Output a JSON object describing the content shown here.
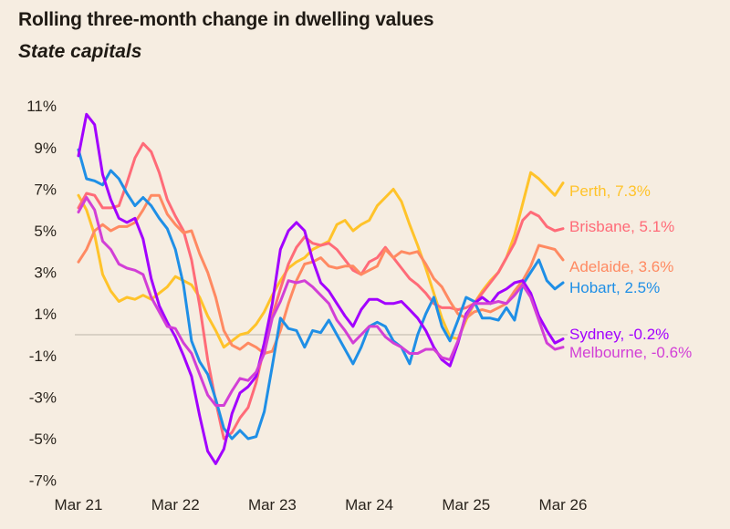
{
  "chart_data": {
    "type": "line",
    "title": "Rolling three-month change in dwelling values",
    "subtitle": "State capitals",
    "xlabel": "",
    "ylabel": "",
    "x_start": "Mar 21",
    "x_end": "Mar 26",
    "x_frequency": "monthly",
    "x_ticks": [
      "Mar 21",
      "Mar 22",
      "Mar 23",
      "Mar 24",
      "Mar 25",
      "Mar 26"
    ],
    "y_ticks": [
      "11%",
      "9%",
      "7%",
      "5%",
      "3%",
      "1%",
      "-1%",
      "-3%",
      "-5%",
      "-7%"
    ],
    "y_tick_values": [
      11,
      9,
      7,
      5,
      3,
      1,
      -1,
      -3,
      -5,
      -7
    ],
    "ylim": [
      -7.5,
      11.5
    ],
    "zero_line": true,
    "grid": false,
    "legend": "end-of-line labels, right",
    "background": "#f6ede1",
    "series": [
      {
        "name": "Perth",
        "label": "Perth, 7.3%",
        "color": "#ffc32a",
        "values": [
          6.7,
          6.0,
          4.8,
          2.9,
          2.1,
          1.6,
          1.8,
          1.7,
          1.9,
          1.7,
          2.0,
          2.3,
          2.8,
          2.6,
          2.4,
          1.8,
          0.9,
          0.2,
          -0.6,
          -0.3,
          0,
          0.1,
          0.5,
          1.1,
          1.9,
          2.6,
          3.2,
          3.5,
          3.7,
          4.1,
          4.3,
          4.5,
          5.3,
          5.5,
          5.0,
          5.3,
          5.5,
          6.2,
          6.6,
          7.0,
          6.4,
          5.3,
          4.3,
          3.2,
          2.0,
          0.8,
          -0.1,
          -0.2,
          0.7,
          1.5,
          2.1,
          2.6,
          3.0,
          3.7,
          4.8,
          6.3,
          7.8,
          7.5,
          7.1,
          6.7,
          7.3
        ]
      },
      {
        "name": "Brisbane",
        "label": "Brisbane, 5.1%",
        "color": "#ff6b78",
        "values": [
          6.1,
          6.8,
          6.7,
          6.1,
          6.1,
          6.2,
          7.3,
          8.5,
          9.2,
          8.8,
          7.8,
          6.5,
          5.7,
          5.0,
          3.6,
          1.4,
          -1.2,
          -3.2,
          -5.0,
          -4.7,
          -4.0,
          -3.5,
          -2.3,
          -0.6,
          0.9,
          2.2,
          3.4,
          4.2,
          4.7,
          4.4,
          4.3,
          4.4,
          4.1,
          3.6,
          3.1,
          2.9,
          3.5,
          3.7,
          4.2,
          3.7,
          3.2,
          2.7,
          2.4,
          2.0,
          1.5,
          1.3,
          1.3,
          1.2,
          1.3,
          1.5,
          2.0,
          2.5,
          3.0,
          3.7,
          4.4,
          5.5,
          5.9,
          5.7,
          5.2,
          5.0,
          5.1
        ]
      },
      {
        "name": "Adelaide",
        "label": "Adelaide, 3.6%",
        "color": "#ff8a62",
        "values": [
          3.5,
          4.1,
          5.0,
          5.3,
          5.0,
          5.2,
          5.2,
          5.4,
          6.0,
          6.7,
          6.7,
          5.8,
          5.3,
          4.9,
          5.0,
          3.9,
          3.0,
          1.8,
          0.2,
          -0.5,
          -0.7,
          -0.4,
          -0.6,
          -0.9,
          -0.8,
          0.2,
          1.5,
          2.6,
          3.4,
          3.5,
          3.7,
          3.3,
          3.2,
          3.3,
          3.3,
          2.9,
          3.1,
          3.3,
          4.1,
          3.7,
          4.0,
          3.9,
          4.0,
          3.4,
          2.7,
          2.3,
          1.6,
          1.0,
          0.8,
          1.1,
          1.2,
          1.1,
          1.3,
          1.5,
          2.1,
          2.6,
          3.3,
          4.3,
          4.2,
          4.1,
          3.6
        ]
      },
      {
        "name": "Hobart",
        "label": "Hobart, 2.5%",
        "color": "#1f8fe6",
        "values": [
          8.9,
          7.5,
          7.4,
          7.2,
          7.9,
          7.5,
          6.8,
          6.2,
          6.6,
          6.2,
          5.6,
          5.1,
          4.1,
          2.4,
          -0.3,
          -1.3,
          -1.9,
          -3.1,
          -4.5,
          -5.0,
          -4.6,
          -5.0,
          -4.9,
          -3.7,
          -1.5,
          0.8,
          0.3,
          0.2,
          -0.6,
          0.2,
          0.1,
          0.7,
          0,
          -0.7,
          -1.4,
          -0.6,
          0.4,
          0.6,
          0.4,
          -0.3,
          -0.6,
          -1.4,
          0,
          1.0,
          1.8,
          0.4,
          -0.3,
          0.7,
          1.8,
          1.6,
          0.8,
          0.8,
          0.7,
          1.3,
          0.7,
          2.4,
          3.0,
          3.6,
          2.6,
          2.2,
          2.5
        ]
      },
      {
        "name": "Sydney",
        "label": "Sydney, -0.2%",
        "color": "#a200ff",
        "values": [
          8.6,
          10.6,
          10.1,
          7.7,
          6.5,
          5.6,
          5.4,
          5.6,
          4.6,
          2.7,
          1.4,
          0.6,
          -0.1,
          -1.0,
          -2.0,
          -3.9,
          -5.6,
          -6.2,
          -5.5,
          -3.8,
          -2.8,
          -2.5,
          -2.0,
          -0.4,
          1.5,
          4.1,
          5.0,
          5.4,
          5.0,
          3.6,
          2.5,
          2.1,
          1.5,
          0.9,
          0.4,
          1.2,
          1.7,
          1.7,
          1.5,
          1.5,
          1.6,
          1.2,
          0.8,
          0.2,
          -0.6,
          -1.2,
          -1.5,
          -0.4,
          1.0,
          1.5,
          1.8,
          1.5,
          2.0,
          2.2,
          2.5,
          2.6,
          2.0,
          0.9,
          0.2,
          -0.4,
          -0.2
        ]
      },
      {
        "name": "Melbourne",
        "label": "Melbourne, -0.6%",
        "color": "#d23fd6",
        "values": [
          5.9,
          6.6,
          6.0,
          4.5,
          4.1,
          3.4,
          3.2,
          3.1,
          2.9,
          1.8,
          1.1,
          0.4,
          0.3,
          -0.4,
          -0.9,
          -1.9,
          -2.9,
          -3.4,
          -3.4,
          -2.7,
          -2.1,
          -2.2,
          -1.8,
          -0.9,
          0.8,
          1.6,
          2.6,
          2.5,
          2.6,
          2.3,
          1.9,
          1.5,
          0.7,
          0.2,
          -0.4,
          0,
          0.4,
          0.4,
          -0.1,
          -0.4,
          -0.6,
          -0.9,
          -0.9,
          -0.7,
          -0.7,
          -1.1,
          -1.2,
          -0.3,
          0.9,
          1.5,
          1.5,
          1.5,
          1.6,
          1.5,
          1.9,
          2.4,
          1.8,
          0.7,
          -0.4,
          -0.7,
          -0.6
        ]
      }
    ]
  }
}
